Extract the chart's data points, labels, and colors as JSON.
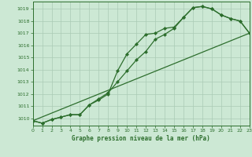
{
  "title": "Graphe pression niveau de la mer (hPa)",
  "xlim": [
    0,
    23
  ],
  "ylim": [
    1009.4,
    1019.6
  ],
  "yticks": [
    1010,
    1011,
    1012,
    1013,
    1014,
    1015,
    1016,
    1017,
    1018,
    1019
  ],
  "xticks": [
    0,
    1,
    2,
    3,
    4,
    5,
    6,
    7,
    8,
    9,
    10,
    11,
    12,
    13,
    14,
    15,
    16,
    17,
    18,
    19,
    20,
    21,
    22,
    23
  ],
  "bg_color": "#cce8d4",
  "grid_color": "#aacbb5",
  "line_color": "#2d6e2d",
  "series1_x": [
    0,
    1,
    2,
    3,
    4,
    5,
    6,
    7,
    8,
    9,
    10,
    11,
    12,
    13,
    14,
    15,
    16,
    17,
    18,
    19,
    20,
    21,
    22,
    23
  ],
  "series1_y": [
    1009.8,
    1009.6,
    1009.9,
    1010.1,
    1010.3,
    1010.3,
    1011.1,
    1011.5,
    1012.0,
    1013.9,
    1015.3,
    1016.1,
    1016.9,
    1017.0,
    1017.4,
    1017.5,
    1018.3,
    1019.1,
    1019.2,
    1019.0,
    1018.5,
    1018.2,
    1018.0,
    1017.0
  ],
  "series2_x": [
    0,
    1,
    2,
    3,
    4,
    5,
    6,
    7,
    8,
    9,
    10,
    11,
    12,
    13,
    14,
    15,
    16,
    17,
    18,
    19,
    20,
    21,
    22,
    23
  ],
  "series2_y": [
    1009.8,
    1009.6,
    1009.9,
    1010.1,
    1010.3,
    1010.3,
    1011.1,
    1011.6,
    1012.1,
    1013.0,
    1013.9,
    1014.8,
    1015.5,
    1016.5,
    1016.9,
    1017.4,
    1018.3,
    1019.1,
    1019.2,
    1019.0,
    1018.5,
    1018.2,
    1018.0,
    1017.0
  ],
  "series3_x": [
    0,
    23
  ],
  "series3_y": [
    1009.8,
    1017.0
  ],
  "marker_style": "D",
  "marker_size": 2.0,
  "line_width": 0.9
}
